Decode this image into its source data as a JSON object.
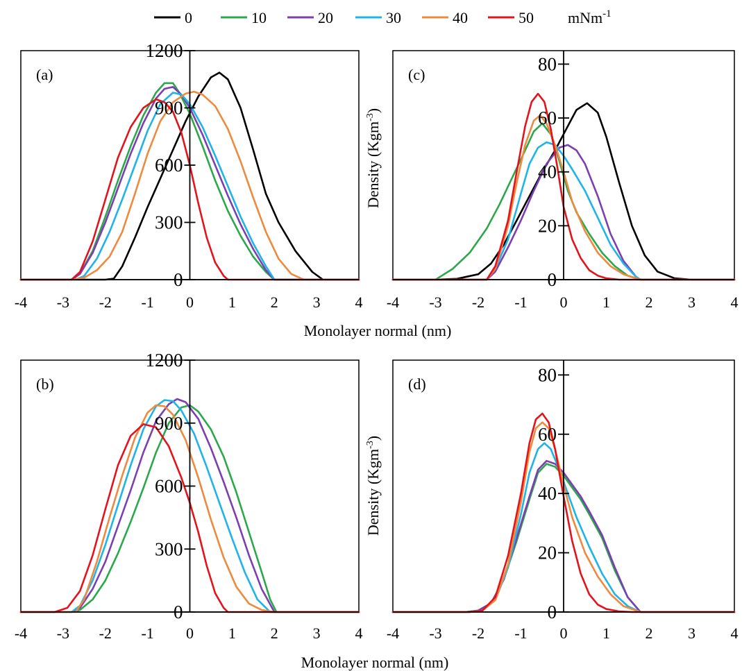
{
  "legend": {
    "unit": "mNm",
    "unit_exponent": "-1",
    "entries": [
      {
        "label": "0",
        "color": "#000000"
      },
      {
        "label": "10",
        "color": "#2aa84a"
      },
      {
        "label": "20",
        "color": "#7a3fb0"
      },
      {
        "label": "30",
        "color": "#1eb4ea"
      },
      {
        "label": "40",
        "color": "#ee8a3e"
      },
      {
        "label": "50",
        "color": "#e4131b"
      }
    ]
  },
  "xlabel": "Monolayer normal (nm)",
  "ylabel_base": "Density (Kgm",
  "ylabel_exp": "-3",
  "ylabel_close": ")",
  "chart_data": [
    {
      "type": "line",
      "panel": "(a)",
      "xlim": [
        -4,
        4
      ],
      "ylim": [
        0,
        1200
      ],
      "xticks": [
        -4,
        -3,
        -2,
        -1,
        0,
        1,
        2,
        3,
        4
      ],
      "yticks": [
        0,
        300,
        600,
        900,
        1200
      ],
      "series": [
        {
          "name": "0",
          "x": [
            -4,
            -2.0,
            -1.8,
            -1.6,
            -1.3,
            -1.0,
            -0.7,
            -0.4,
            -0.1,
            0.2,
            0.5,
            0.7,
            0.9,
            1.2,
            1.5,
            1.8,
            2.1,
            2.5,
            2.9,
            3.15,
            3.4,
            4
          ],
          "y": [
            0,
            0,
            5,
            70,
            220,
            380,
            530,
            680,
            830,
            960,
            1060,
            1085,
            1050,
            900,
            680,
            450,
            300,
            150,
            40,
            0,
            0,
            0
          ]
        },
        {
          "name": "10",
          "x": [
            -4,
            -2.8,
            -2.6,
            -2.3,
            -2.0,
            -1.7,
            -1.4,
            -1.1,
            -0.8,
            -0.6,
            -0.4,
            -0.25,
            0.0,
            0.3,
            0.6,
            0.9,
            1.2,
            1.5,
            1.8,
            2.0,
            4
          ],
          "y": [
            0,
            0,
            30,
            150,
            330,
            520,
            700,
            860,
            980,
            1030,
            1030,
            980,
            870,
            700,
            520,
            360,
            230,
            120,
            40,
            0,
            0
          ]
        },
        {
          "name": "20",
          "x": [
            -4,
            -2.8,
            -2.6,
            -2.3,
            -2.0,
            -1.7,
            -1.4,
            -1.1,
            -0.8,
            -0.6,
            -0.4,
            -0.2,
            0.0,
            0.3,
            0.6,
            0.9,
            1.2,
            1.5,
            1.8,
            2.0,
            4
          ],
          "y": [
            0,
            0,
            30,
            140,
            300,
            480,
            660,
            820,
            950,
            1000,
            1010,
            970,
            900,
            760,
            600,
            440,
            290,
            160,
            50,
            0,
            0
          ]
        },
        {
          "name": "30",
          "x": [
            -4,
            -2.7,
            -2.5,
            -2.2,
            -1.9,
            -1.6,
            -1.3,
            -1.0,
            -0.7,
            -0.4,
            -0.2,
            0.0,
            0.3,
            0.6,
            0.9,
            1.2,
            1.5,
            1.8,
            2.0,
            4
          ],
          "y": [
            0,
            0,
            20,
            110,
            250,
            420,
            600,
            780,
            920,
            980,
            970,
            920,
            800,
            650,
            490,
            330,
            190,
            70,
            0,
            0
          ]
        },
        {
          "name": "40",
          "x": [
            -4,
            -2.8,
            -2.5,
            -2.2,
            -1.9,
            -1.6,
            -1.3,
            -1.0,
            -0.7,
            -0.4,
            -0.1,
            0.1,
            0.3,
            0.6,
            0.9,
            1.2,
            1.5,
            1.8,
            2.1,
            2.4,
            2.7,
            4
          ],
          "y": [
            0,
            0,
            10,
            50,
            120,
            250,
            450,
            660,
            830,
            930,
            975,
            985,
            970,
            910,
            790,
            620,
            430,
            250,
            110,
            30,
            0,
            0
          ]
        },
        {
          "name": "50",
          "x": [
            -4,
            -2.8,
            -2.6,
            -2.3,
            -2.0,
            -1.7,
            -1.4,
            -1.1,
            -0.8,
            -0.6,
            -0.4,
            -0.2,
            0.0,
            0.2,
            0.4,
            0.6,
            0.8,
            0.9,
            4
          ],
          "y": [
            0,
            0,
            40,
            200,
            420,
            640,
            800,
            900,
            945,
            930,
            880,
            770,
            600,
            400,
            220,
            90,
            20,
            0,
            0
          ]
        }
      ]
    },
    {
      "type": "line",
      "panel": "(b)",
      "xlim": [
        -4,
        4
      ],
      "ylim": [
        0,
        1200
      ],
      "xticks": [
        -4,
        -3,
        -2,
        -1,
        0,
        1,
        2,
        3,
        4
      ],
      "yticks": [
        0,
        300,
        600,
        900,
        1200
      ],
      "series": [
        {
          "name": "10",
          "x": [
            -4,
            -2.8,
            -2.6,
            -2.3,
            -2.0,
            -1.7,
            -1.4,
            -1.1,
            -0.8,
            -0.5,
            -0.2,
            0.0,
            0.2,
            0.5,
            0.8,
            1.1,
            1.4,
            1.7,
            1.9,
            2.05,
            4
          ],
          "y": [
            0,
            0,
            10,
            60,
            150,
            280,
            430,
            590,
            760,
            900,
            975,
            985,
            955,
            870,
            740,
            570,
            380,
            190,
            60,
            0,
            0
          ]
        },
        {
          "name": "20",
          "x": [
            -4,
            -2.8,
            -2.6,
            -2.3,
            -2.0,
            -1.7,
            -1.4,
            -1.1,
            -0.8,
            -0.5,
            -0.3,
            -0.1,
            0.2,
            0.5,
            0.8,
            1.1,
            1.4,
            1.7,
            2.0,
            4
          ],
          "y": [
            0,
            0,
            20,
            110,
            240,
            410,
            580,
            760,
            910,
            990,
            1015,
            1000,
            920,
            780,
            620,
            450,
            270,
            110,
            0,
            0
          ]
        },
        {
          "name": "30",
          "x": [
            -4,
            -2.8,
            -2.6,
            -2.3,
            -2.0,
            -1.7,
            -1.4,
            -1.1,
            -0.8,
            -0.6,
            -0.4,
            -0.2,
            0.1,
            0.4,
            0.7,
            1.0,
            1.3,
            1.6,
            1.9,
            4
          ],
          "y": [
            0,
            0,
            30,
            150,
            320,
            510,
            700,
            870,
            980,
            1010,
            1005,
            960,
            850,
            690,
            520,
            350,
            190,
            60,
            0,
            0
          ]
        },
        {
          "name": "40",
          "x": [
            -4,
            -2.7,
            -2.5,
            -2.2,
            -1.9,
            -1.6,
            -1.3,
            -1.0,
            -0.8,
            -0.6,
            -0.4,
            -0.1,
            0.2,
            0.5,
            0.8,
            1.1,
            1.4,
            1.7,
            2.0,
            4
          ],
          "y": [
            0,
            0,
            60,
            240,
            450,
            650,
            830,
            950,
            985,
            980,
            940,
            820,
            640,
            440,
            260,
            120,
            40,
            10,
            0,
            0
          ]
        },
        {
          "name": "50",
          "x": [
            -4,
            -3.2,
            -2.9,
            -2.6,
            -2.3,
            -2.0,
            -1.7,
            -1.4,
            -1.1,
            -0.8,
            -0.5,
            -0.2,
            0.0,
            0.2,
            0.4,
            0.6,
            0.8,
            0.9,
            4
          ],
          "y": [
            0,
            0,
            20,
            100,
            270,
            490,
            700,
            840,
            895,
            880,
            790,
            640,
            520,
            380,
            220,
            90,
            20,
            0,
            0
          ]
        }
      ]
    },
    {
      "type": "line",
      "panel": "(c)",
      "xlim": [
        -4,
        4
      ],
      "ylim": [
        0,
        85
      ],
      "xticks": [
        -4,
        -3,
        -2,
        -1,
        0,
        1,
        2,
        3,
        4
      ],
      "yticks": [
        0,
        20,
        40,
        60,
        80
      ],
      "series": [
        {
          "name": "0",
          "x": [
            -4,
            -3.0,
            -2.5,
            -2.0,
            -1.7,
            -1.4,
            -1.1,
            -0.8,
            -0.5,
            -0.2,
            0.1,
            0.3,
            0.55,
            0.8,
            1.0,
            1.3,
            1.6,
            1.9,
            2.2,
            2.6,
            3.0,
            4
          ],
          "y": [
            0,
            0,
            0.3,
            2,
            6,
            13,
            22,
            31,
            40,
            48,
            57,
            63,
            65.5,
            62,
            53,
            36,
            20,
            9,
            3,
            0.5,
            0,
            0
          ]
        },
        {
          "name": "10",
          "x": [
            -4,
            -3.0,
            -2.6,
            -2.2,
            -1.8,
            -1.5,
            -1.2,
            -0.9,
            -0.7,
            -0.5,
            -0.3,
            -0.1,
            0.1,
            0.3,
            0.6,
            0.9,
            1.2,
            1.5,
            1.8,
            4
          ],
          "y": [
            0,
            0,
            4,
            10,
            19,
            28,
            38,
            48,
            55,
            58,
            54,
            44,
            33,
            25,
            17,
            10,
            5,
            1.5,
            0,
            0
          ]
        },
        {
          "name": "20",
          "x": [
            -4,
            -1.8,
            -1.6,
            -1.3,
            -1.0,
            -0.7,
            -0.4,
            -0.1,
            0.1,
            0.3,
            0.5,
            0.8,
            1.1,
            1.4,
            1.7,
            1.8,
            4
          ],
          "y": [
            0,
            0,
            3,
            12,
            22,
            33,
            43,
            49,
            50,
            48,
            43,
            31,
            17,
            7,
            1,
            0,
            0
          ]
        },
        {
          "name": "30",
          "x": [
            -4,
            -1.8,
            -1.6,
            -1.3,
            -1.0,
            -0.8,
            -0.6,
            -0.4,
            -0.2,
            0.0,
            0.2,
            0.5,
            0.8,
            1.1,
            1.4,
            1.7,
            1.8,
            4
          ],
          "y": [
            0,
            0,
            4,
            15,
            32,
            43,
            49,
            51,
            50,
            46,
            41,
            33,
            23,
            13,
            6,
            1,
            0,
            0
          ]
        },
        {
          "name": "40",
          "x": [
            -4,
            -1.8,
            -1.6,
            -1.3,
            -1.1,
            -0.9,
            -0.7,
            -0.55,
            -0.4,
            -0.2,
            0.0,
            0.2,
            0.5,
            0.8,
            1.1,
            1.4,
            1.7,
            1.8,
            4
          ],
          "y": [
            0,
            0,
            4,
            20,
            36,
            50,
            59,
            61,
            58,
            50,
            40,
            29,
            18,
            10,
            5,
            2,
            0.5,
            0,
            0
          ]
        },
        {
          "name": "50",
          "x": [
            -4,
            -1.8,
            -1.6,
            -1.3,
            -1.1,
            -0.9,
            -0.75,
            -0.6,
            -0.45,
            -0.3,
            -0.15,
            0.0,
            0.2,
            0.4,
            0.6,
            0.8,
            1.0,
            1.3,
            1.6,
            4
          ],
          "y": [
            0,
            0,
            5,
            22,
            40,
            57,
            66,
            69,
            66,
            56,
            42,
            27,
            15,
            8,
            3.5,
            1.5,
            0.5,
            0,
            0,
            0
          ]
        }
      ]
    },
    {
      "type": "line",
      "panel": "(d)",
      "xlim": [
        -4,
        4
      ],
      "ylim": [
        0,
        85
      ],
      "xticks": [
        -4,
        -3,
        -2,
        -1,
        0,
        1,
        2,
        3,
        4
      ],
      "yticks": [
        0,
        20,
        40,
        60,
        80
      ],
      "series": [
        {
          "name": "10",
          "x": [
            -4,
            -2.3,
            -2.0,
            -1.7,
            -1.4,
            -1.1,
            -0.8,
            -0.6,
            -0.4,
            -0.2,
            0.0,
            0.2,
            0.4,
            0.6,
            0.9,
            1.2,
            1.5,
            1.8,
            4
          ],
          "y": [
            0,
            0,
            0.5,
            3,
            11,
            24,
            38,
            47,
            50,
            49,
            46,
            42,
            38,
            33,
            25,
            14,
            5,
            0,
            0
          ]
        },
        {
          "name": "20",
          "x": [
            -4,
            -2.3,
            -2.0,
            -1.7,
            -1.4,
            -1.1,
            -0.8,
            -0.6,
            -0.4,
            -0.2,
            0.0,
            0.2,
            0.4,
            0.6,
            0.9,
            1.2,
            1.5,
            1.8,
            4
          ],
          "y": [
            0,
            0,
            0.5,
            3,
            11,
            25,
            39,
            48,
            51,
            50,
            47,
            43,
            39,
            34,
            26,
            15,
            5,
            0,
            0
          ]
        },
        {
          "name": "30",
          "x": [
            -4,
            -2.2,
            -1.9,
            -1.6,
            -1.3,
            -1.0,
            -0.8,
            -0.6,
            -0.45,
            -0.3,
            -0.1,
            0.1,
            0.3,
            0.6,
            0.9,
            1.2,
            1.5,
            1.8,
            4
          ],
          "y": [
            0,
            0,
            0.5,
            4,
            15,
            33,
            47,
            55,
            57,
            55,
            48,
            40,
            32,
            22,
            13,
            6,
            2,
            0,
            0
          ]
        },
        {
          "name": "40",
          "x": [
            -4,
            -2.2,
            -1.9,
            -1.6,
            -1.3,
            -1.0,
            -0.8,
            -0.65,
            -0.5,
            -0.35,
            -0.2,
            0.0,
            0.2,
            0.5,
            0.8,
            1.1,
            1.4,
            1.8,
            4
          ],
          "y": [
            0,
            0,
            0.5,
            4,
            16,
            37,
            54,
            62,
            64,
            62,
            55,
            43,
            32,
            20,
            12,
            6,
            2,
            0,
            0
          ]
        },
        {
          "name": "50",
          "x": [
            -4,
            -2.2,
            -1.9,
            -1.6,
            -1.3,
            -1.0,
            -0.8,
            -0.65,
            -0.5,
            -0.35,
            -0.2,
            0.0,
            0.2,
            0.4,
            0.6,
            0.8,
            1.0,
            1.3,
            1.6,
            4
          ],
          "y": [
            0,
            0,
            0.5,
            5,
            19,
            40,
            57,
            65,
            67,
            64,
            55,
            39,
            24,
            13,
            6,
            2.5,
            1,
            0.2,
            0,
            0
          ]
        }
      ]
    }
  ]
}
